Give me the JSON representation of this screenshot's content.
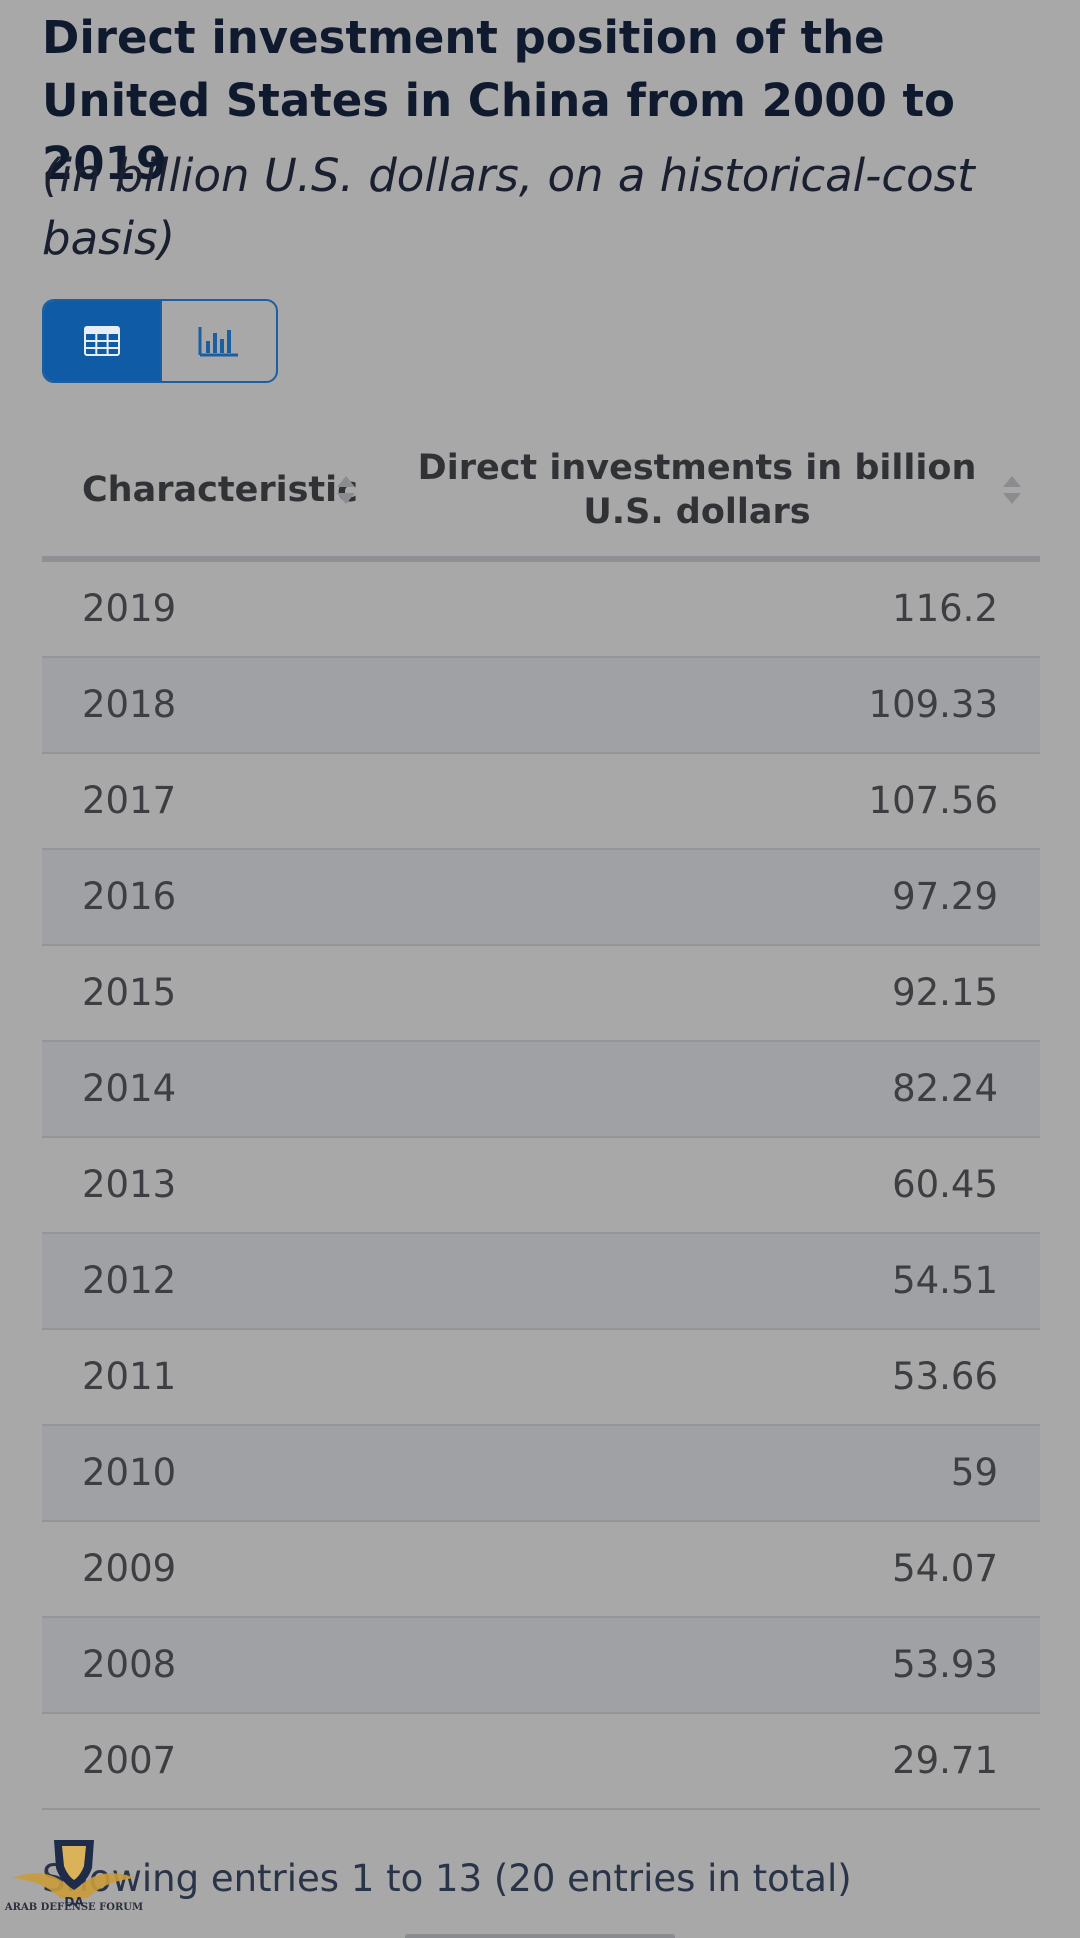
{
  "header": {
    "title": "Direct investment position of the United States in China from 2000 to 2019",
    "subtitle": "(in billion U.S. dollars, on a historical-cost basis)"
  },
  "view_toggle": {
    "table_icon": "table-icon",
    "chart_icon": "bar-chart-icon",
    "active": "table",
    "active_color": "#0f5ba6"
  },
  "table": {
    "columns": [
      "Characteristic",
      "Direct investments in billion U.S. dollars"
    ],
    "rows": [
      {
        "year": "2019",
        "value": "116.2"
      },
      {
        "year": "2018",
        "value": "109.33"
      },
      {
        "year": "2017",
        "value": "107.56"
      },
      {
        "year": "2016",
        "value": "97.29"
      },
      {
        "year": "2015",
        "value": "92.15"
      },
      {
        "year": "2014",
        "value": "82.24"
      },
      {
        "year": "2013",
        "value": "60.45"
      },
      {
        "year": "2012",
        "value": "54.51"
      },
      {
        "year": "2011",
        "value": "53.66"
      },
      {
        "year": "2010",
        "value": "59"
      },
      {
        "year": "2009",
        "value": "54.07"
      },
      {
        "year": "2008",
        "value": "53.93"
      },
      {
        "year": "2007",
        "value": "29.71"
      }
    ]
  },
  "footer": {
    "entries_text": "Showing entries 1 to 13 (20 entries in total)"
  },
  "watermark": {
    "logo_text": "DA",
    "forum_text": "ARAB DEFENSE FORUM"
  }
}
